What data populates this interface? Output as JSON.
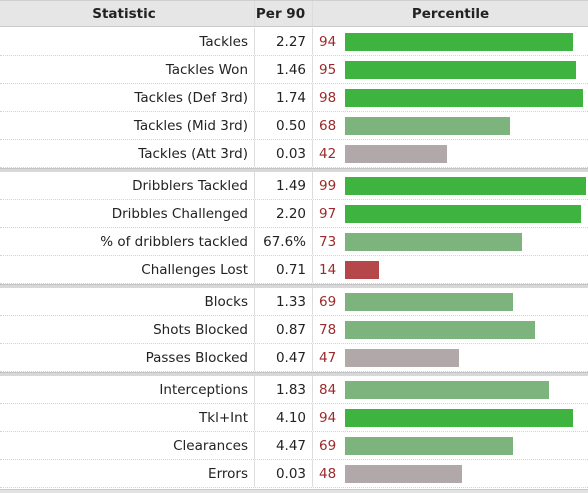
{
  "header": {
    "statistic": "Statistic",
    "per90": "Per 90",
    "percentile": "Percentile"
  },
  "colors": {
    "high": "#3fb33f",
    "mid": "#7db37d",
    "avg": "#b1a9a9",
    "low": "#b5474b"
  },
  "groups": [
    [
      {
        "stat": "Tackles",
        "per90": "2.27",
        "pct": 94,
        "tier": "high"
      },
      {
        "stat": "Tackles Won",
        "per90": "1.46",
        "pct": 95,
        "tier": "high"
      },
      {
        "stat": "Tackles (Def 3rd)",
        "per90": "1.74",
        "pct": 98,
        "tier": "high"
      },
      {
        "stat": "Tackles (Mid 3rd)",
        "per90": "0.50",
        "pct": 68,
        "tier": "mid"
      },
      {
        "stat": "Tackles (Att 3rd)",
        "per90": "0.03",
        "pct": 42,
        "tier": "avgd"
      }
    ],
    [
      {
        "stat": "Dribblers Tackled",
        "per90": "1.49",
        "pct": 99,
        "tier": "high"
      },
      {
        "stat": "Dribbles Challenged",
        "per90": "2.20",
        "pct": 97,
        "tier": "high"
      },
      {
        "stat": "% of dribblers tackled",
        "per90": "67.6%",
        "pct": 73,
        "tier": "mid"
      },
      {
        "stat": "Challenges Lost",
        "per90": "0.71",
        "pct": 14,
        "tier": "low"
      }
    ],
    [
      {
        "stat": "Blocks",
        "per90": "1.33",
        "pct": 69,
        "tier": "mid"
      },
      {
        "stat": "Shots Blocked",
        "per90": "0.87",
        "pct": 78,
        "tier": "mid"
      },
      {
        "stat": "Passes Blocked",
        "per90": "0.47",
        "pct": 47,
        "tier": "avg"
      }
    ],
    [
      {
        "stat": "Interceptions",
        "per90": "1.83",
        "pct": 84,
        "tier": "mid"
      },
      {
        "stat": "Tkl+Int",
        "per90": "4.10",
        "pct": 94,
        "tier": "high"
      },
      {
        "stat": "Clearances",
        "per90": "4.47",
        "pct": 69,
        "tier": "mid"
      },
      {
        "stat": "Errors",
        "per90": "0.03",
        "pct": 48,
        "tier": "avg"
      }
    ]
  ]
}
